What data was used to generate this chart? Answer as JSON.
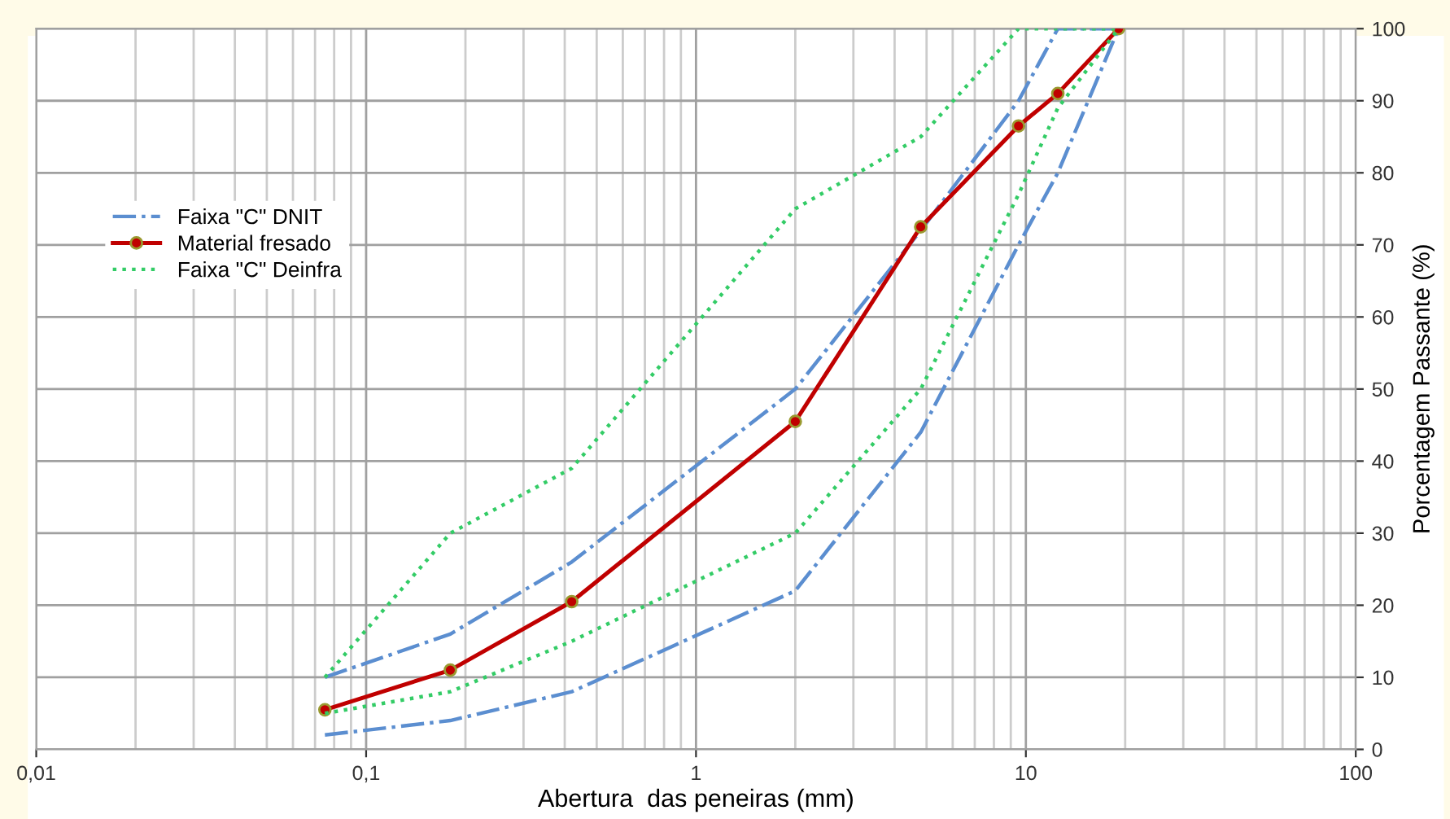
{
  "chart_data": {
    "type": "line",
    "xlabel": "Abertura  das peneiras (mm)",
    "ylabel": "Porcentagem Passante (%)",
    "log": "x",
    "xlim": [
      0.01,
      100
    ],
    "xticks": [
      {
        "value": 0.01,
        "label": "0,01"
      },
      {
        "value": 0.1,
        "label": "0,1"
      },
      1,
      10,
      100
    ],
    "ylim": [
      0,
      100
    ],
    "yticks": [
      0,
      10,
      20,
      30,
      40,
      50,
      60,
      70,
      80,
      90,
      100
    ],
    "grid": true,
    "legend": "left",
    "series": [
      {
        "name": "Faixa \"C\" DNIT",
        "color": "#5b8ed0",
        "line_style": "dashdot",
        "marker": "none",
        "x": [
          0.075,
          0.18,
          0.42,
          2.0,
          4.8,
          9.5,
          12.5,
          19.1
        ],
        "values": [
          10,
          16,
          26,
          50,
          72,
          90,
          100,
          100
        ]
      },
      {
        "color": "#5b8ed0",
        "line_style": "dashdot",
        "marker": "none",
        "x": [
          0.075,
          0.18,
          0.42,
          2.0,
          4.8,
          9.5,
          12.5,
          19.1
        ],
        "values": [
          2,
          4,
          8,
          22,
          44,
          70,
          80,
          100
        ]
      },
      {
        "name": "Material fresado",
        "color": "#c00000",
        "line_style": "solid",
        "marker": "circle",
        "x": [
          0.075,
          0.18,
          0.42,
          2.0,
          4.8,
          9.5,
          12.5,
          19.1
        ],
        "values": [
          5.5,
          11,
          20.5,
          45.5,
          72.5,
          86.5,
          91,
          100
        ]
      },
      {
        "name": "Faixa \"C\" Deinfra",
        "color": "#33cc66",
        "line_style": "dotted",
        "marker": "none",
        "x": [
          0.075,
          0.18,
          0.42,
          2.0,
          4.8,
          9.5,
          12.5,
          19.1
        ],
        "values": [
          10,
          30,
          39,
          75,
          85,
          100,
          100,
          100
        ]
      },
      {
        "color": "#33cc66",
        "line_style": "dotted",
        "marker": "none",
        "x": [
          0.075,
          0.18,
          0.42,
          2.0,
          4.8,
          9.5,
          12.5,
          19.1
        ],
        "values": [
          5,
          8,
          15,
          30,
          50,
          77,
          89,
          100
        ]
      }
    ]
  }
}
